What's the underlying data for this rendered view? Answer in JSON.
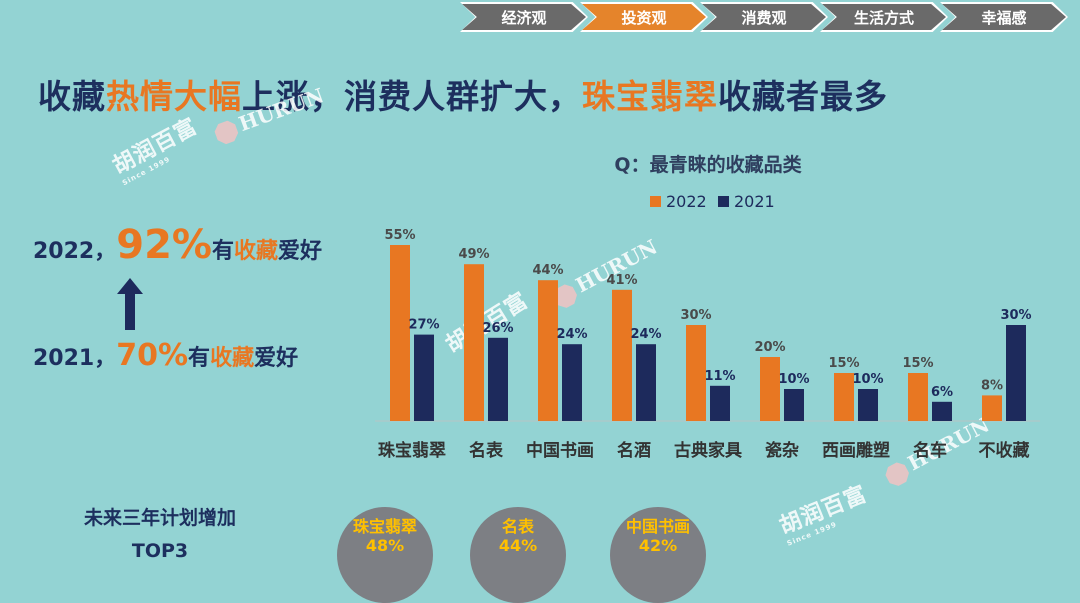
{
  "nav": {
    "items": [
      {
        "label": "经济观",
        "active": false
      },
      {
        "label": "投资观",
        "active": true
      },
      {
        "label": "消费观",
        "active": false
      },
      {
        "label": "生活方式",
        "active": false
      },
      {
        "label": "幸福感",
        "active": false
      }
    ]
  },
  "headline": {
    "part1": "收藏",
    "part2": "热情大幅",
    "part3": "上涨，消费人群扩大，",
    "part4": "珠宝翡翠",
    "part5": "收藏者最多"
  },
  "brand": {
    "cn_name": "胡润百富",
    "hurun": "HURUN",
    "since": "Since 1999"
  },
  "stats": {
    "y2022": {
      "year": "2022，",
      "pct": "92%",
      "pre": "有",
      "hl": "收藏",
      "post": "爱好"
    },
    "y2021": {
      "year": "2021，",
      "pct": "70%",
      "pre": "有",
      "hl": "收藏",
      "post": "爱好"
    }
  },
  "colors": {
    "orange": "#e87722",
    "navy": "#1d2a5c",
    "teal_bg": "#93d3d3"
  },
  "chart_data": {
    "type": "bar",
    "title": "Q：最青睐的收藏品类",
    "categories": [
      "珠宝翡翠",
      "名表",
      "中国书画",
      "名酒",
      "古典家具",
      "瓷杂",
      "西画雕塑",
      "名车",
      "不收藏"
    ],
    "series": [
      {
        "name": "2022",
        "values": [
          55,
          49,
          44,
          41,
          30,
          20,
          15,
          15,
          8
        ],
        "color": "#e87722"
      },
      {
        "name": "2021",
        "values": [
          27,
          26,
          24,
          24,
          11,
          10,
          10,
          6,
          30
        ],
        "color": "#1d2a5c"
      }
    ],
    "value_suffix": "%",
    "ylim": [
      0,
      60
    ],
    "grid": false,
    "legend": "top-center"
  },
  "top3": {
    "title": "未来三年计划增加",
    "subtitle": "TOP3",
    "items": [
      {
        "name": "珠宝翡翠",
        "value": "48%"
      },
      {
        "name": "名表",
        "value": "44%"
      },
      {
        "name": "中国书画",
        "value": "42%"
      }
    ]
  }
}
